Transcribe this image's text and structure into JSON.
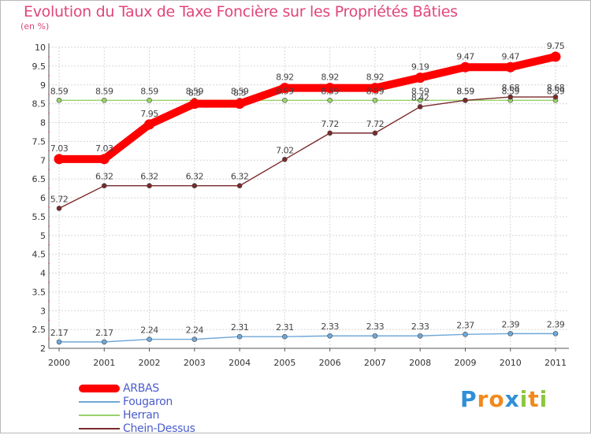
{
  "chart_data": {
    "type": "line",
    "title": "Evolution du Taux de Taxe Foncière sur les Propriétés Bâties",
    "ylabel": "(en %)",
    "xlabel": "",
    "x": [
      "2000",
      "2001",
      "2002",
      "2003",
      "2004",
      "2005",
      "2006",
      "2007",
      "2008",
      "2009",
      "2010",
      "2011"
    ],
    "ylim": [
      2,
      10
    ],
    "yticks": [
      "2",
      "2.5",
      "3",
      "3.5",
      "4",
      "4.5",
      "5",
      "5.5",
      "6",
      "6.5",
      "7",
      "7.5",
      "8",
      "8.5",
      "9",
      "9.5",
      "10"
    ],
    "series": [
      {
        "name": "ARBAS",
        "color": "#ff0000",
        "values": [
          7.03,
          7.03,
          7.95,
          8.5,
          8.5,
          8.92,
          8.92,
          8.92,
          9.19,
          9.47,
          9.47,
          9.75
        ],
        "labels": [
          "7.03",
          "7.03",
          "7.95",
          "8.5",
          "8.5",
          "8.92",
          "8.92",
          "8.92",
          "9.19",
          "9.47",
          "9.47",
          "9.75"
        ]
      },
      {
        "name": "Fougaron",
        "color": "#6fa8d8",
        "values": [
          2.17,
          2.17,
          2.24,
          2.24,
          2.31,
          2.31,
          2.33,
          2.33,
          2.33,
          2.37,
          2.39,
          2.39
        ],
        "labels": [
          "2.17",
          "2.17",
          "2.24",
          "2.24",
          "2.31",
          "2.31",
          "2.33",
          "2.33",
          "2.33",
          "2.37",
          "2.39",
          "2.39"
        ]
      },
      {
        "name": "Herran",
        "color": "#98d36a",
        "values": [
          8.59,
          8.59,
          8.59,
          8.59,
          8.59,
          8.59,
          8.59,
          8.59,
          8.59,
          8.59,
          8.59,
          8.59
        ],
        "labels": [
          "8.59",
          "8.59",
          "8.59",
          "8.59",
          "8.59",
          "8.59",
          "8.59",
          "8.59",
          "8.59",
          "8.59",
          "8.59",
          "8.59"
        ]
      },
      {
        "name": "Chein-Dessus",
        "color": "#7a2a2a",
        "values": [
          5.72,
          6.32,
          6.32,
          6.32,
          6.32,
          7.02,
          7.72,
          7.72,
          8.42,
          8.59,
          8.68,
          8.68
        ],
        "labels": [
          "5.72",
          "6.32",
          "6.32",
          "6.32",
          "6.32",
          "7.02",
          "7.72",
          "7.72",
          "8.42",
          "8.59",
          "8.68",
          "8.68"
        ]
      }
    ]
  },
  "logo": {
    "letters": [
      "P",
      "r",
      "o",
      "x",
      "i",
      "t",
      "i"
    ],
    "colors": [
      "#2f8fd8",
      "#f08a1c",
      "#f08a1c",
      "#2f8fd8",
      "#8cc63f",
      "#f08a1c",
      "#8cc63f"
    ]
  }
}
